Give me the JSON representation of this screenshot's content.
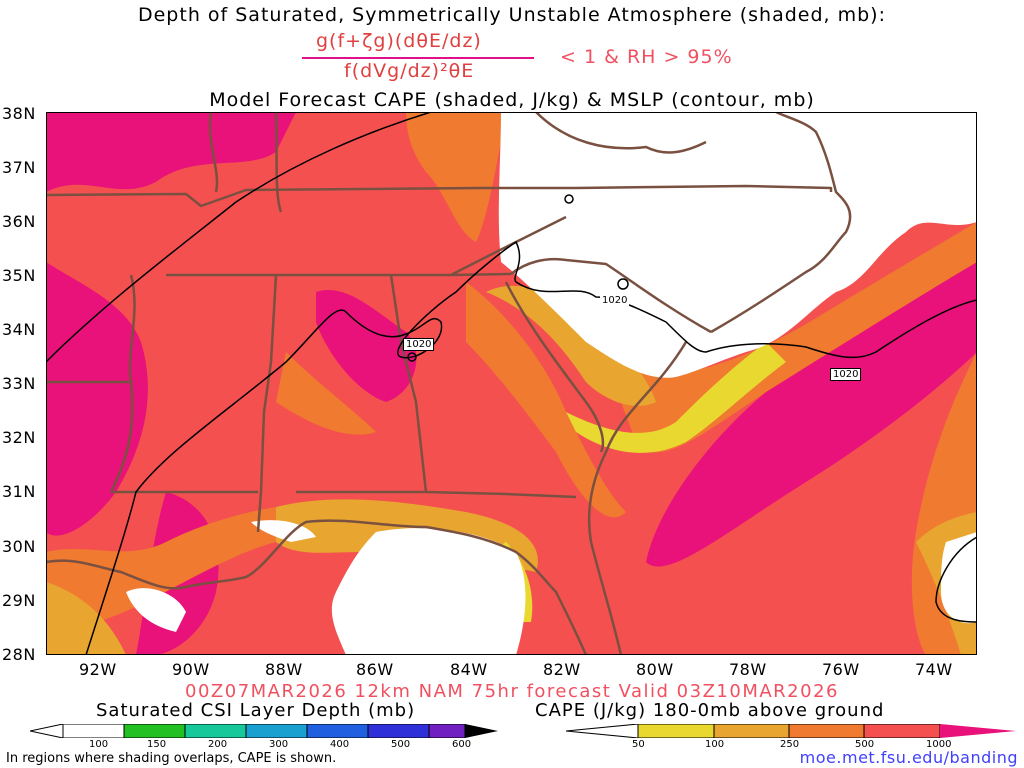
{
  "titles": {
    "line1": "Depth of Saturated, Symmetrically Unstable Atmosphere (shaded, mb):",
    "numerator": "g(f+ζg)(dθE/dz)",
    "denominator": "f(dVg/dz)²θE",
    "condition": "< 1 & RH > 95%",
    "line3": "Model Forecast CAPE (shaded, J/kg) & MSLP (contour, mb)"
  },
  "axes": {
    "lat_labels": [
      "38N",
      "37N",
      "36N",
      "35N",
      "34N",
      "33N",
      "32N",
      "31N",
      "30N",
      "29N",
      "28N"
    ],
    "lon_labels": [
      "92W",
      "90W",
      "88W",
      "86W",
      "84W",
      "82W",
      "80W",
      "78W",
      "76W",
      "74W"
    ]
  },
  "contours": {
    "label_a": "1020",
    "label_b": "1020",
    "label_c": "1020"
  },
  "valid_line": "00Z07MAR2026 12km NAM 75hr forecast Valid 03Z10MAR2026",
  "csi_bar": {
    "title": "Saturated CSI Layer Depth (mb)",
    "ticks": [
      "100",
      "150",
      "200",
      "300",
      "400",
      "500",
      "600"
    ],
    "colors": [
      "#ffffff",
      "#22c022",
      "#16c89a",
      "#1aa0d0",
      "#2060e0",
      "#3030d8",
      "#7020c0",
      "#000000"
    ]
  },
  "cape_bar": {
    "title": "CAPE (J/kg) 180-0mb above ground",
    "ticks": [
      "50",
      "100",
      "250",
      "500",
      "1000"
    ],
    "colors": [
      "#ffffff",
      "#e8d830",
      "#e8a630",
      "#f07a30",
      "#f55050",
      "#e8127a"
    ]
  },
  "footer": {
    "note": "In regions where shading overlaps, CAPE is shown.",
    "url": "moe.met.fsu.edu/banding"
  },
  "colors": {
    "cape_50": "#e8d830",
    "cape_100": "#e8a630",
    "cape_250": "#f07a30",
    "cape_500": "#f55050",
    "cape_1000": "#e8127a",
    "borders": "#7a5040",
    "title_red": "#f05060",
    "url_blue": "#4040ff"
  }
}
